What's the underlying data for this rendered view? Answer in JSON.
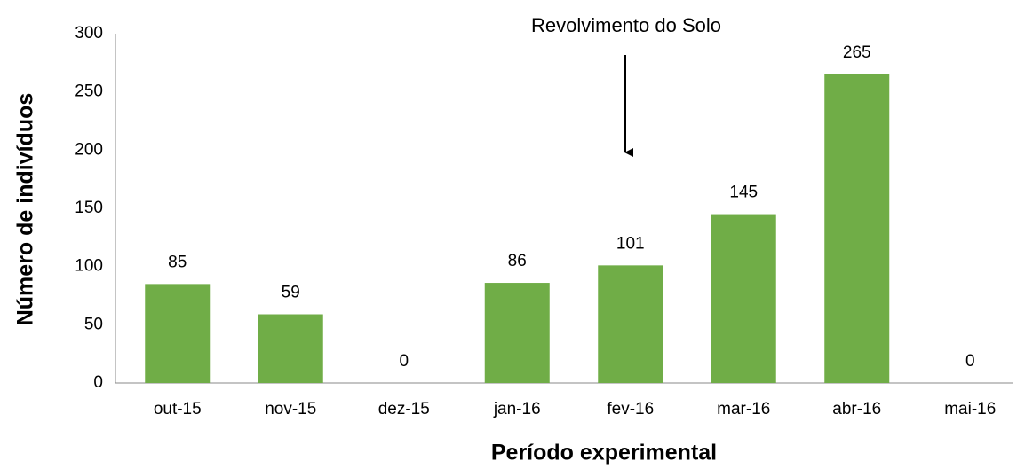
{
  "chart_data": {
    "type": "bar",
    "x_label": "Período experimental",
    "y_label": "Número de indivíduos",
    "annotation": "Revolvimento do Solo",
    "categories": [
      "out-15",
      "nov-15",
      "dez-15",
      "jan-16",
      "fev-16",
      "mar-16",
      "abr-16",
      "mai-16"
    ],
    "values": [
      85,
      59,
      0,
      86,
      101,
      145,
      265,
      0
    ],
    "color": "#70ad47",
    "ylim": [
      0,
      300
    ],
    "yticks": [
      0,
      50,
      100,
      150,
      200,
      250,
      300
    ],
    "grid": false
  }
}
